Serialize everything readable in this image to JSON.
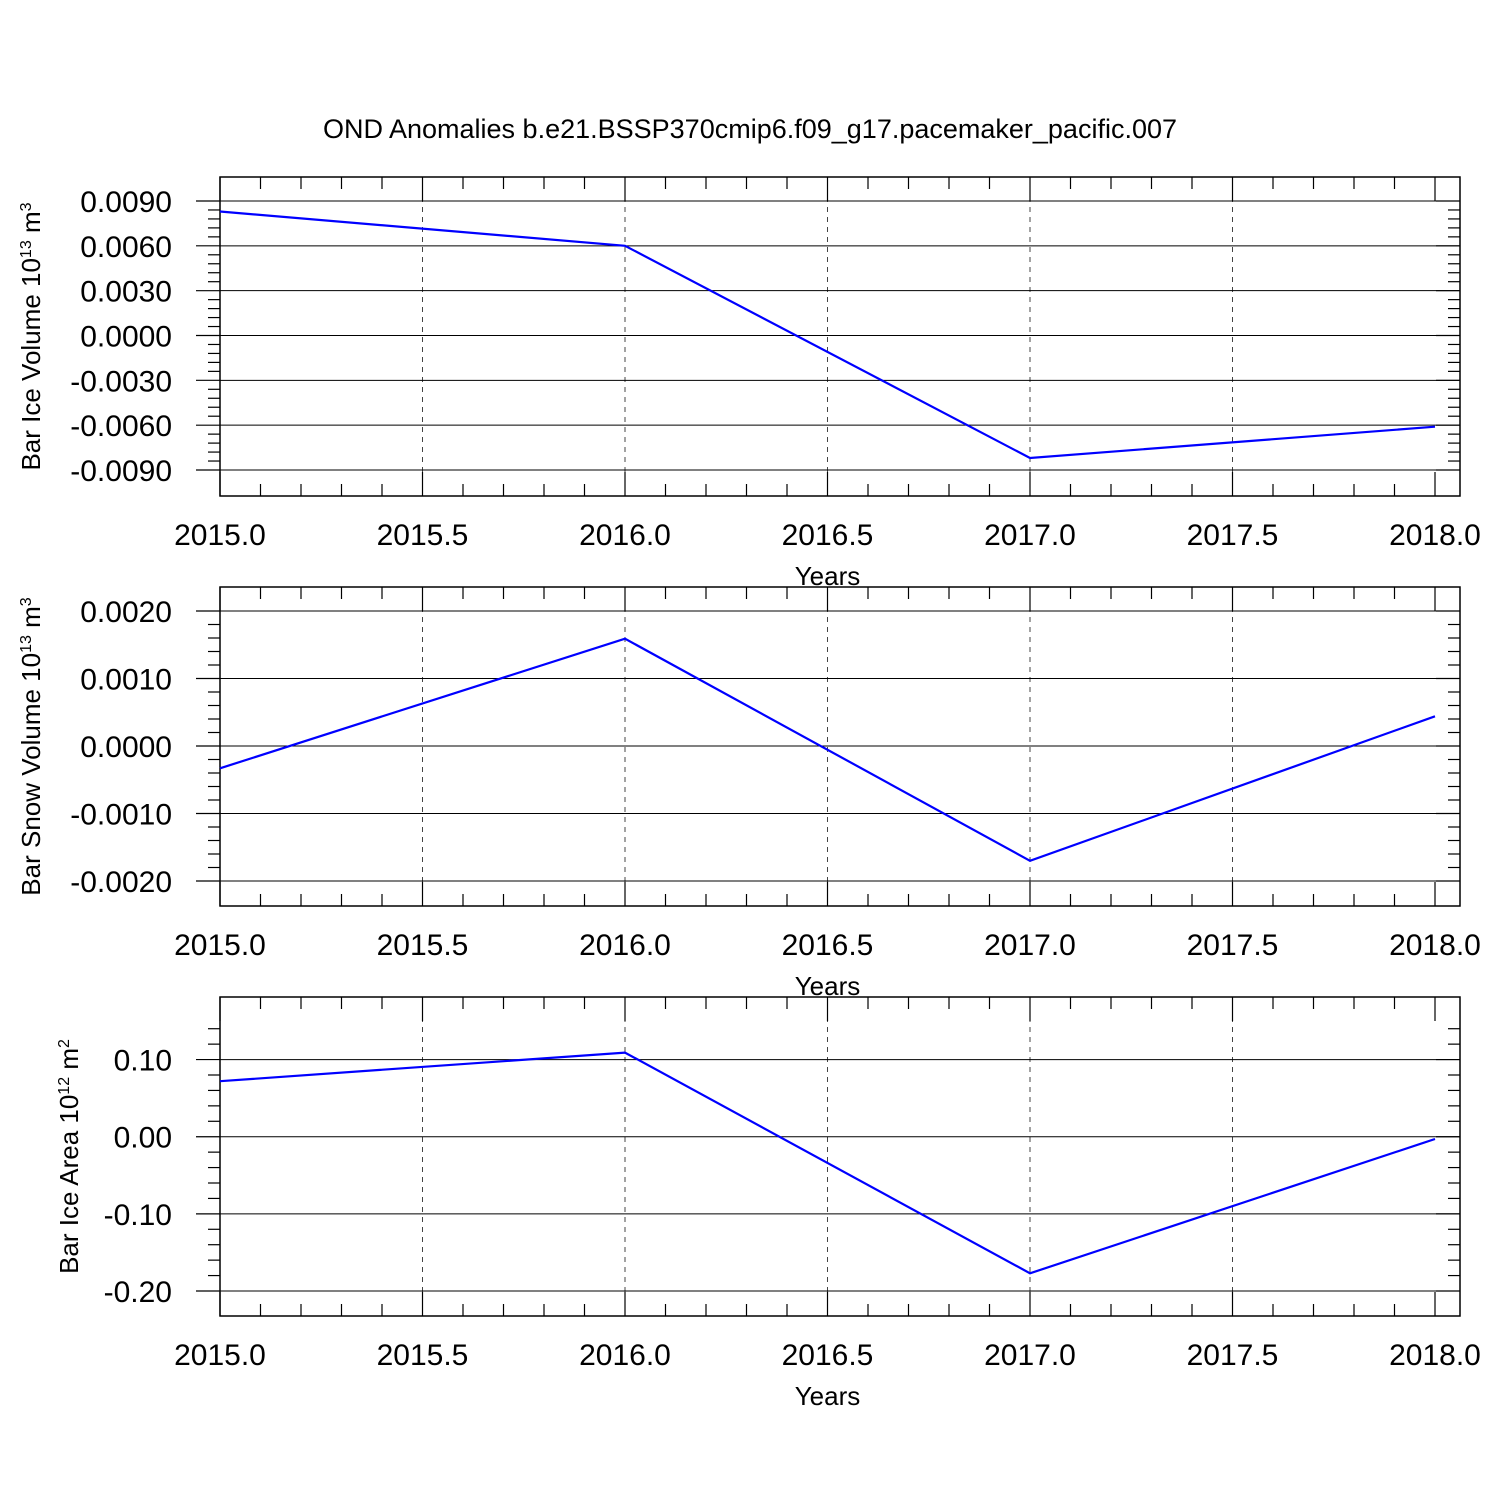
{
  "title": "OND Anomalies b.e21.BSSP370cmip6.f09_g17.pacemaker_pacific.007",
  "colors": {
    "series": "#0000ff",
    "axis": "#000000"
  },
  "chart_data": [
    {
      "type": "line",
      "xlabel": "Years",
      "ylabel": {
        "base": "Bar Ice Volume 10",
        "exp": "13",
        "unit": " m",
        "unit_exp": "3"
      },
      "xlim": [
        2015.0,
        2018.0
      ],
      "ylim": [
        -0.009,
        0.009
      ],
      "xticks": [
        "2015.0",
        "2015.5",
        "2016.0",
        "2016.5",
        "2017.0",
        "2017.5",
        "2018.0"
      ],
      "yticks": [
        "0.0090",
        "0.0060",
        "0.0030",
        "0.0000",
        "-0.0030",
        "-0.0060",
        "-0.0090"
      ],
      "grid": true,
      "x": [
        2015,
        2016,
        2017,
        2018
      ],
      "y": [
        0.0083,
        0.006,
        -0.0082,
        -0.0061
      ]
    },
    {
      "type": "line",
      "xlabel": "Years",
      "ylabel": {
        "base": "Bar Snow Volume 10",
        "exp": "13",
        "unit": " m",
        "unit_exp": "3"
      },
      "xlim": [
        2015.0,
        2018.0
      ],
      "ylim": [
        -0.002,
        0.002
      ],
      "xticks": [
        "2015.0",
        "2015.5",
        "2016.0",
        "2016.5",
        "2017.0",
        "2017.5",
        "2018.0"
      ],
      "yticks": [
        "0.0020",
        "0.0010",
        "0.0000",
        "-0.0010",
        "-0.0020"
      ],
      "grid": true,
      "x": [
        2015,
        2016,
        2017,
        2018
      ],
      "y": [
        -0.00033,
        0.00159,
        -0.0017,
        0.00044
      ]
    },
    {
      "type": "line",
      "xlabel": "Years",
      "ylabel": {
        "base": "Bar Ice Area 10",
        "exp": "12",
        "unit": " m",
        "unit_exp": "2"
      },
      "xlim": [
        2015.0,
        2018.0
      ],
      "ylim": [
        -0.2,
        0.15
      ],
      "xticks": [
        "2015.0",
        "2015.5",
        "2016.0",
        "2016.5",
        "2017.0",
        "2017.5",
        "2018.0"
      ],
      "yticks": [
        "0.10",
        "0.00",
        "-0.10",
        "-0.20"
      ],
      "grid": true,
      "x": [
        2015,
        2016,
        2017,
        2018
      ],
      "y": [
        0.072,
        0.109,
        -0.177,
        -0.003
      ]
    }
  ]
}
